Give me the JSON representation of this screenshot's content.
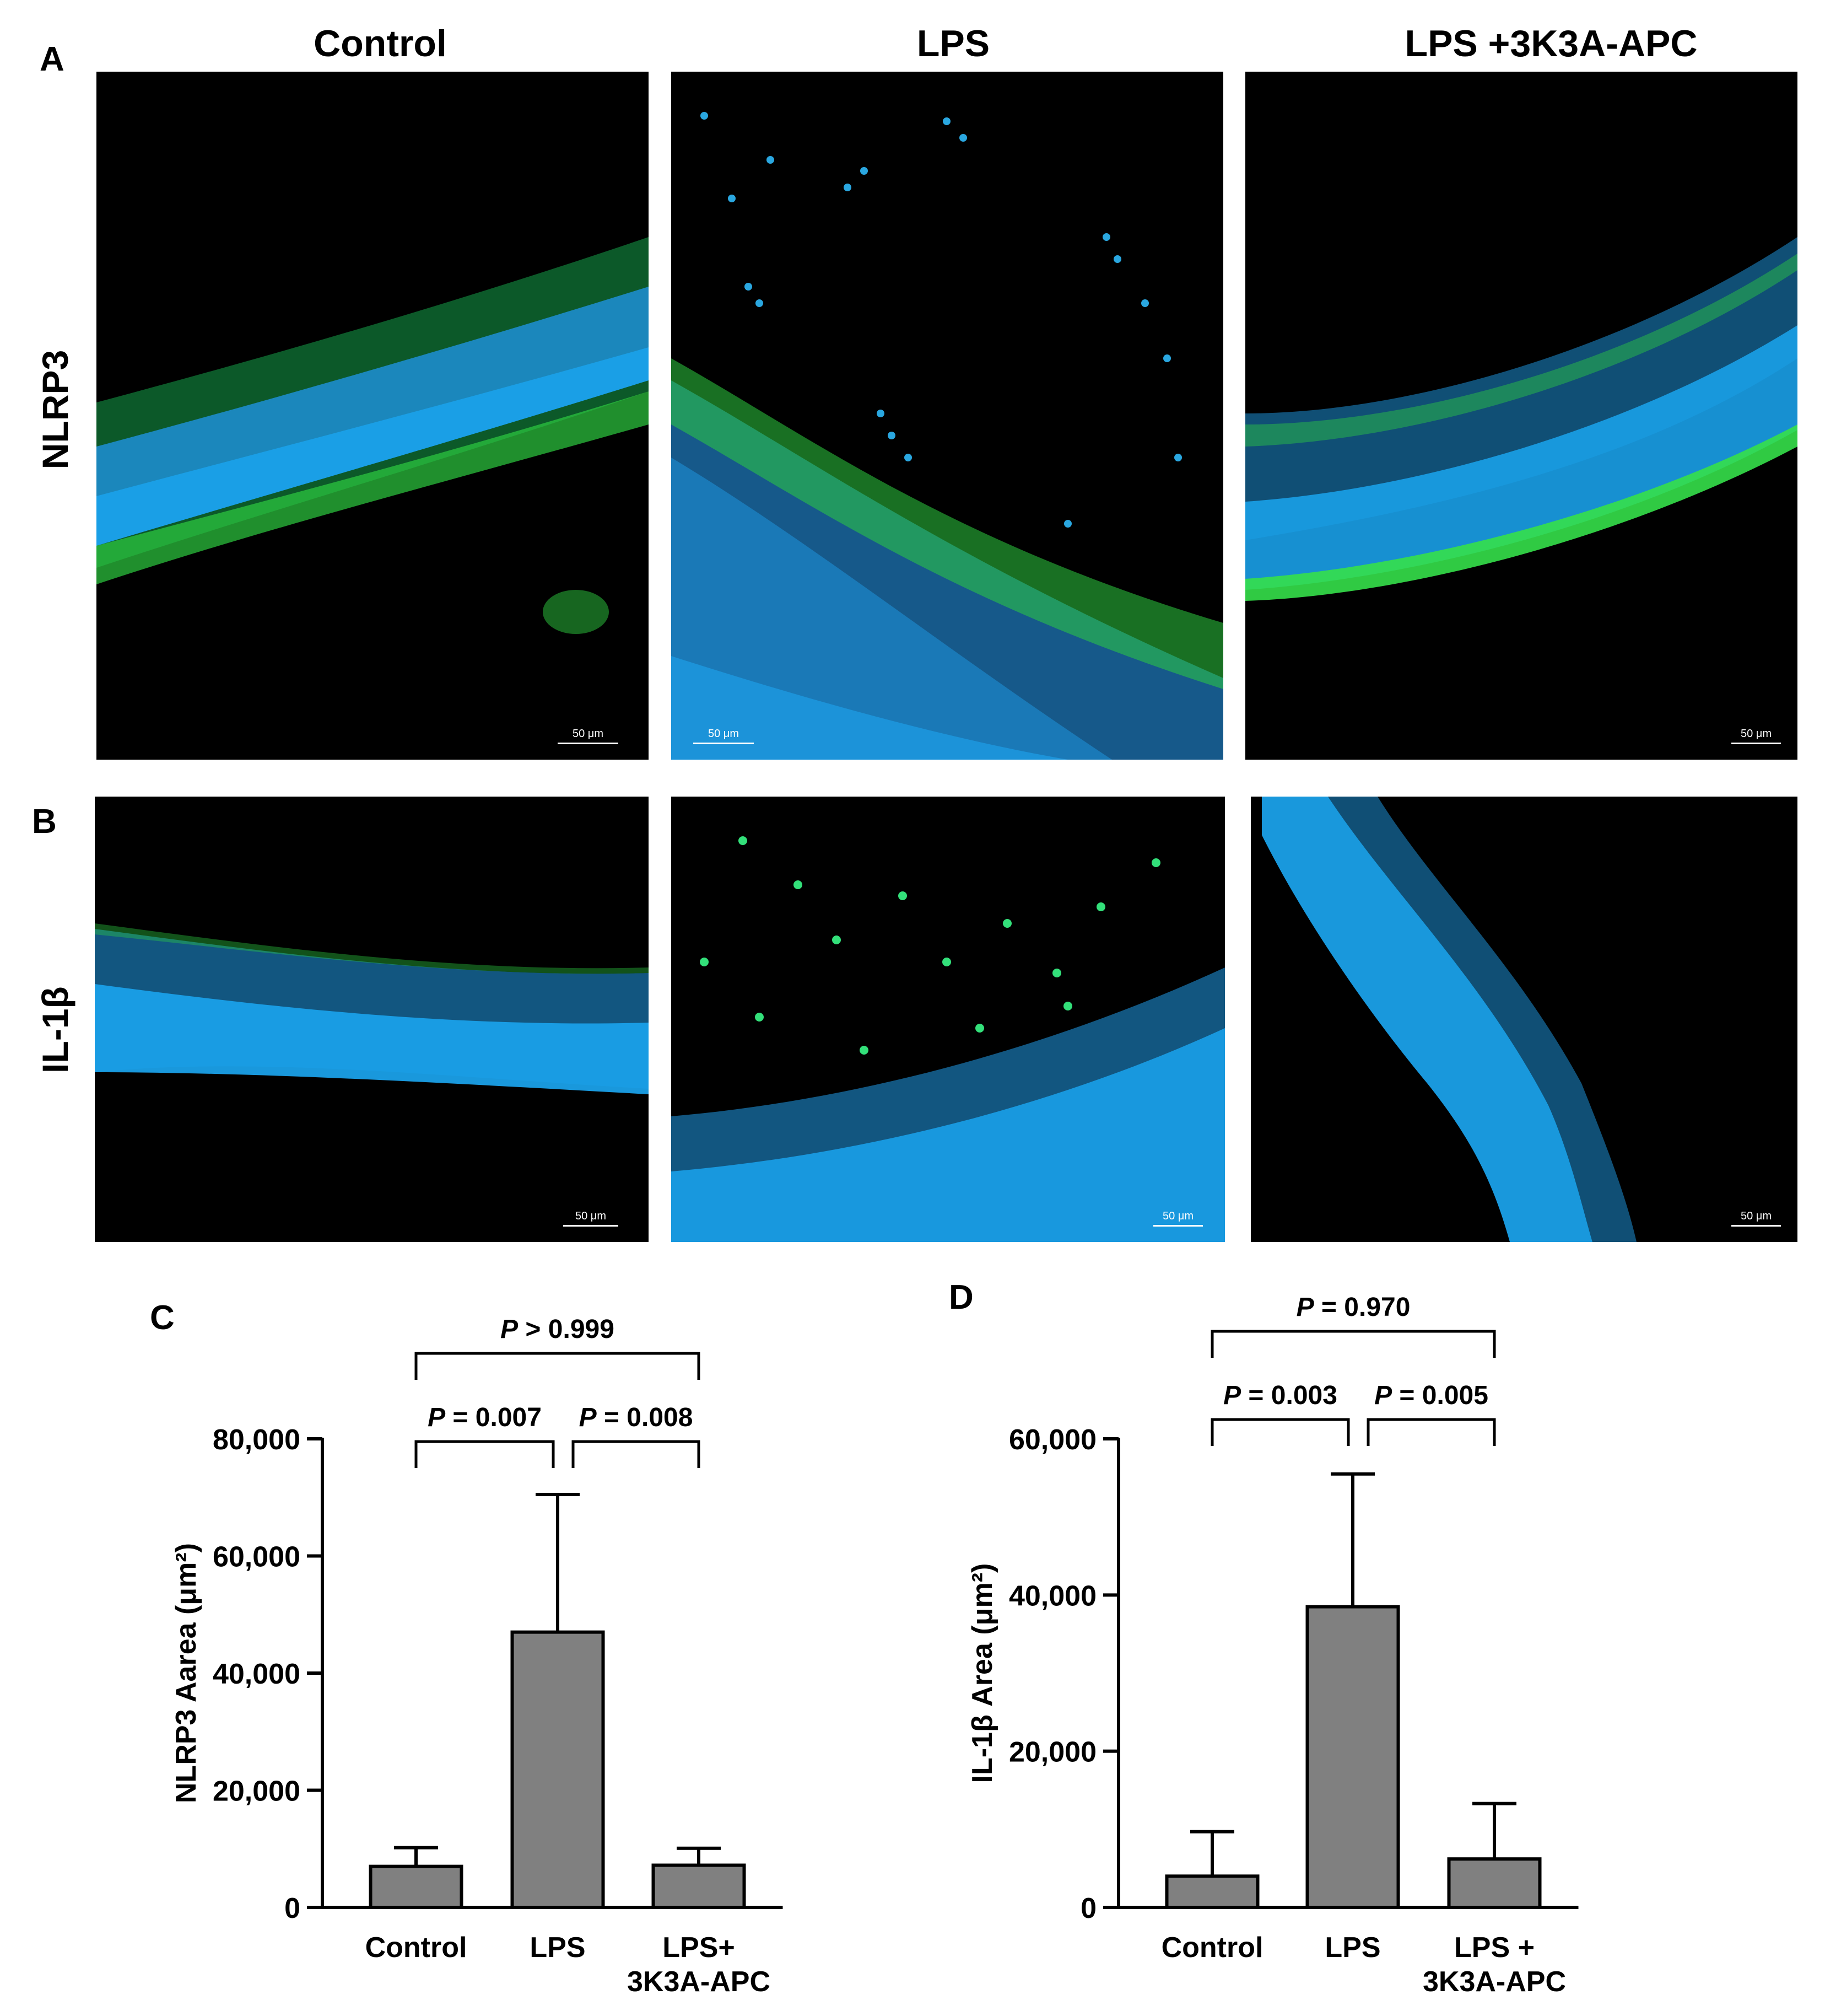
{
  "figure": {
    "column_titles": [
      "Control",
      "LPS",
      "LPS +3K3A-APC"
    ],
    "row_labels": [
      "NLRP3",
      "IL-1β"
    ],
    "panel_letters": [
      "A",
      "B",
      "C",
      "D"
    ],
    "scale_bar_label": "50 μm",
    "colors": {
      "nuclei": "#1e8fd6",
      "stain": "#2ee03c",
      "bar": "#808080"
    }
  },
  "chart_data": [
    {
      "type": "bar",
      "panel": "C",
      "categories": [
        "Control",
        "LPS",
        "LPS+ 3K3A-APC"
      ],
      "values": [
        7000,
        47000,
        7200
      ],
      "errors": [
        3200,
        23500,
        2900
      ],
      "ylabel": "NLRP3 Aarea (μm²)",
      "ylim": [
        0,
        80000
      ],
      "yticks": [
        "0",
        "20,000",
        "40,000",
        "60,000",
        "80,000"
      ],
      "comparisons": [
        {
          "from": 0,
          "to": 1,
          "label": "P = 0.007"
        },
        {
          "from": 1,
          "to": 2,
          "label": "P = 0.008"
        },
        {
          "from": 0,
          "to": 2,
          "label": "P > 0.999"
        }
      ]
    },
    {
      "type": "bar",
      "panel": "D",
      "categories": [
        "Control",
        "LPS",
        "LPS + 3K3A-APC"
      ],
      "values": [
        4000,
        38500,
        6200
      ],
      "errors": [
        5700,
        17000,
        7100
      ],
      "ylabel": "IL-1β Area (μm²)",
      "ylim": [
        0,
        60000
      ],
      "yticks": [
        "0",
        "20,000",
        "40,000",
        "60,000"
      ],
      "comparisons": [
        {
          "from": 0,
          "to": 1,
          "label": "P = 0.003"
        },
        {
          "from": 1,
          "to": 2,
          "label": "P = 0.005"
        },
        {
          "from": 0,
          "to": 2,
          "label": "P = 0.970"
        }
      ]
    }
  ]
}
